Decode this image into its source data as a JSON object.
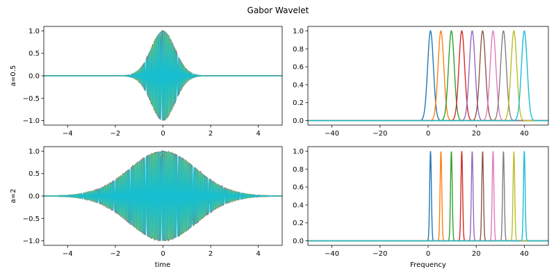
{
  "figure": {
    "title": "Gabor Wavelet",
    "palette": [
      "#1f77b4",
      "#ff7f0e",
      "#2ca02c",
      "#d62728",
      "#9467bd",
      "#8c564b",
      "#e377c2",
      "#7f7f7f",
      "#bcbd22",
      "#17becf"
    ]
  },
  "chart_data": [
    {
      "type": "line",
      "panel": "time-a0.5",
      "domain": "time",
      "a": 0.5,
      "xlabel": "",
      "ylabel": "a=0.5",
      "xlim": [
        -5,
        5
      ],
      "ylim": [
        -1.1,
        1.1
      ],
      "xticks": [
        -4,
        -2,
        0,
        2,
        4
      ],
      "xtick_labels": [
        "−4",
        "−2",
        "0",
        "2",
        "4"
      ],
      "yticks": [
        -1.0,
        -0.5,
        0.0,
        0.5,
        1.0
      ],
      "ytick_labels": [
        "−1.0",
        "−0.5",
        "0.0",
        "0.5",
        "1.0"
      ],
      "frequencies": [
        1,
        5.33,
        9.67,
        14,
        18.33,
        22.67,
        27,
        31.33,
        35.67,
        40
      ],
      "envelope_sigma": 0.5,
      "grid": false,
      "legend": "none"
    },
    {
      "type": "line",
      "panel": "freq-a0.5",
      "domain": "frequency",
      "a": 0.5,
      "xlabel": "",
      "ylabel": "",
      "xlim": [
        -50,
        50
      ],
      "ylim": [
        -0.05,
        1.05
      ],
      "xticks": [
        -40,
        -20,
        0,
        20,
        40
      ],
      "xtick_labels": [
        "−40",
        "−20",
        "0",
        "20",
        "40"
      ],
      "yticks": [
        0.0,
        0.2,
        0.4,
        0.6,
        0.8,
        1.0
      ],
      "ytick_labels": [
        "0.0",
        "0.2",
        "0.4",
        "0.6",
        "0.8",
        "1.0"
      ],
      "centers": [
        1,
        5.33,
        9.67,
        14,
        18.33,
        22.67,
        27,
        31.33,
        35.67,
        40
      ],
      "peak_sigma": 1.2,
      "grid": false,
      "legend": "none"
    },
    {
      "type": "line",
      "panel": "time-a2",
      "domain": "time",
      "a": 2,
      "xlabel": "time",
      "ylabel": "a=2",
      "xlim": [
        -5,
        5
      ],
      "ylim": [
        -1.1,
        1.1
      ],
      "xticks": [
        -4,
        -2,
        0,
        2,
        4
      ],
      "xtick_labels": [
        "−4",
        "−2",
        "0",
        "2",
        "4"
      ],
      "yticks": [
        -1.0,
        -0.5,
        0.0,
        0.5,
        1.0
      ],
      "ytick_labels": [
        "−1.0",
        "−0.5",
        "0.0",
        "0.5",
        "1.0"
      ],
      "frequencies": [
        1,
        5.33,
        9.67,
        14,
        18.33,
        22.67,
        27,
        31.33,
        35.67,
        40
      ],
      "envelope_sigma": 1.4,
      "grid": false,
      "legend": "none"
    },
    {
      "type": "line",
      "panel": "freq-a2",
      "domain": "frequency",
      "a": 2,
      "xlabel": "Frequency",
      "ylabel": "",
      "xlim": [
        -50,
        50
      ],
      "ylim": [
        -0.05,
        1.05
      ],
      "xticks": [
        -40,
        -20,
        0,
        20,
        40
      ],
      "xtick_labels": [
        "−40",
        "−20",
        "0",
        "20",
        "40"
      ],
      "yticks": [
        0.0,
        0.2,
        0.4,
        0.6,
        0.8,
        1.0
      ],
      "ytick_labels": [
        "0.0",
        "0.2",
        "0.4",
        "0.6",
        "0.8",
        "1.0"
      ],
      "centers": [
        1,
        5.33,
        9.67,
        14,
        18.33,
        22.67,
        27,
        31.33,
        35.67,
        40
      ],
      "peak_sigma": 0.35,
      "grid": false,
      "legend": "none"
    }
  ]
}
